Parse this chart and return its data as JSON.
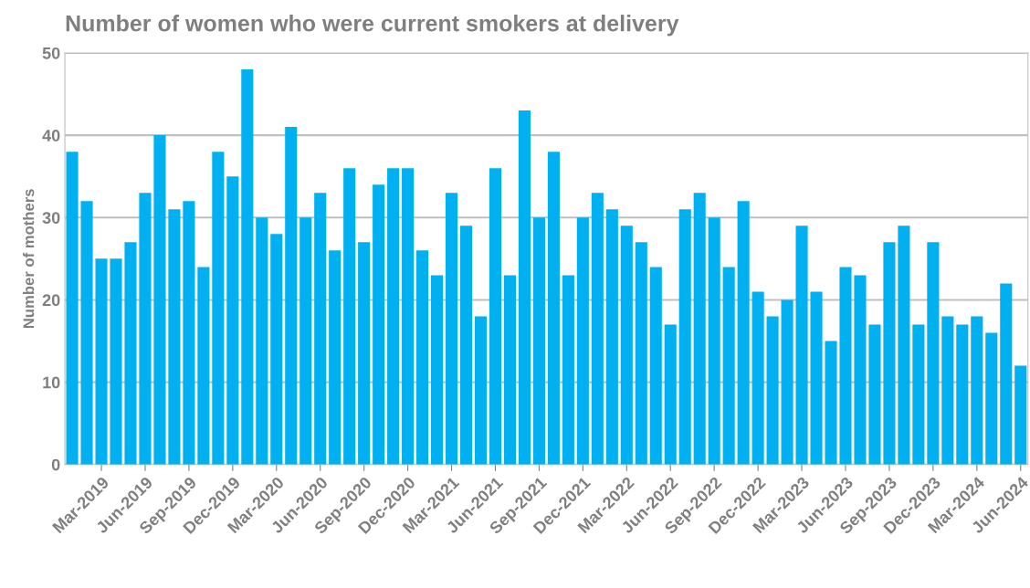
{
  "chart_data": {
    "type": "bar",
    "title": "Number of women who were current smokers at delivery",
    "ylabel": "Number of mothers",
    "categories": [
      null,
      null,
      "Mar-2019",
      null,
      null,
      "Jun-2019",
      null,
      null,
      "Sep-2019",
      null,
      null,
      "Dec-2019",
      null,
      null,
      "Mar-2020",
      null,
      null,
      "Jun-2020",
      null,
      null,
      "Sep-2020",
      null,
      null,
      "Dec-2020",
      null,
      null,
      "Mar-2021",
      null,
      null,
      "Jun-2021",
      null,
      null,
      "Sep-2021",
      null,
      null,
      "Dec-2021",
      null,
      null,
      "Mar-2022",
      null,
      null,
      "Jun-2022",
      null,
      null,
      "Sep-2022",
      null,
      null,
      "Dec-2022",
      null,
      null,
      "Mar-2023",
      null,
      null,
      "Jun-2023",
      null,
      null,
      "Sep-2023",
      null,
      null,
      "Dec-2023",
      null,
      null,
      "Mar-2024",
      null,
      null,
      "Jun-2024"
    ],
    "values": [
      38,
      32,
      25,
      25,
      27,
      33,
      40,
      31,
      32,
      24,
      38,
      35,
      48,
      30,
      28,
      41,
      30,
      33,
      26,
      36,
      27,
      34,
      36,
      36,
      26,
      23,
      33,
      29,
      18,
      36,
      23,
      43,
      30,
      38,
      23,
      30,
      33,
      31,
      29,
      27,
      24,
      17,
      31,
      33,
      30,
      24,
      32,
      21,
      18,
      20,
      29,
      21,
      15,
      24,
      23,
      17,
      27,
      29,
      17,
      27,
      18,
      17,
      18,
      16,
      22,
      12
    ],
    "color": "#00b0f0",
    "ylim": [
      0,
      50
    ],
    "yticks": [
      0,
      10,
      20,
      30,
      40,
      50
    ],
    "grid": "y"
  }
}
